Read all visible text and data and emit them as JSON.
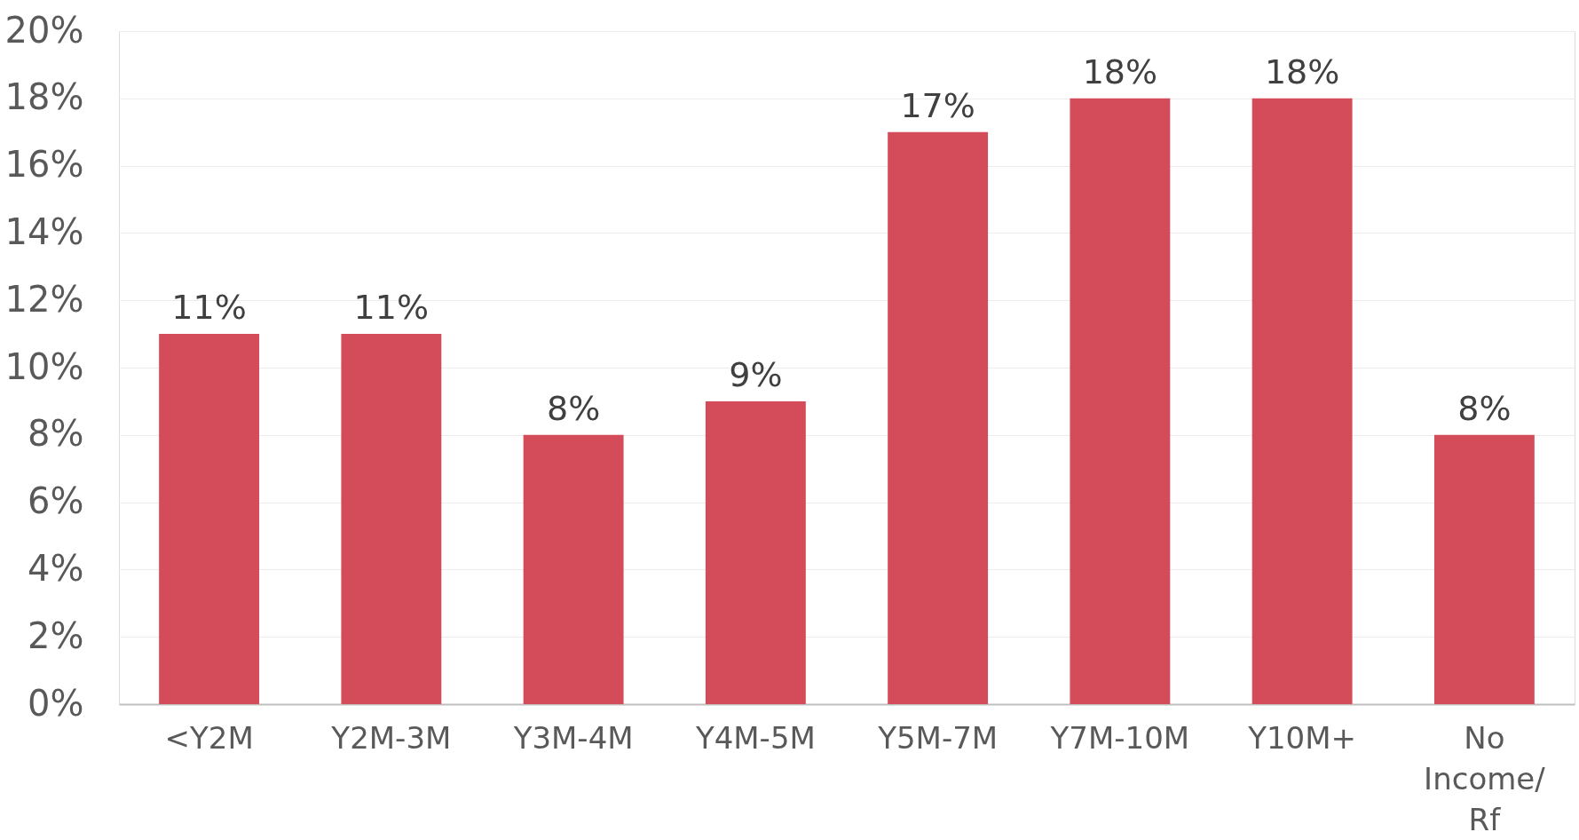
{
  "chart_data": {
    "type": "bar",
    "categories": [
      "<Y2M",
      "Y2M-3M",
      "Y3M-4M",
      "Y4M-5M",
      "Y5M-7M",
      "Y7M-10M",
      "Y10M+",
      "No Income/Rf"
    ],
    "values": [
      11,
      11,
      8,
      9,
      17,
      18,
      18,
      8
    ],
    "value_labels": [
      "11%",
      "11%",
      "8%",
      "9%",
      "17%",
      "18%",
      "18%",
      "8%"
    ],
    "color": "#d44c5a",
    "ylim": [
      0,
      20
    ],
    "yticks": [
      {
        "value": 0,
        "label": "0%"
      },
      {
        "value": 2,
        "label": "2%"
      },
      {
        "value": 4,
        "label": "4%"
      },
      {
        "value": 6,
        "label": "6%"
      },
      {
        "value": 8,
        "label": "8%"
      },
      {
        "value": 10,
        "label": "10%"
      },
      {
        "value": 12,
        "label": "12%"
      },
      {
        "value": 14,
        "label": "14%"
      },
      {
        "value": 16,
        "label": "16%"
      },
      {
        "value": 18,
        "label": "18%"
      },
      {
        "value": 20,
        "label": "20%"
      }
    ],
    "grid": "y"
  }
}
